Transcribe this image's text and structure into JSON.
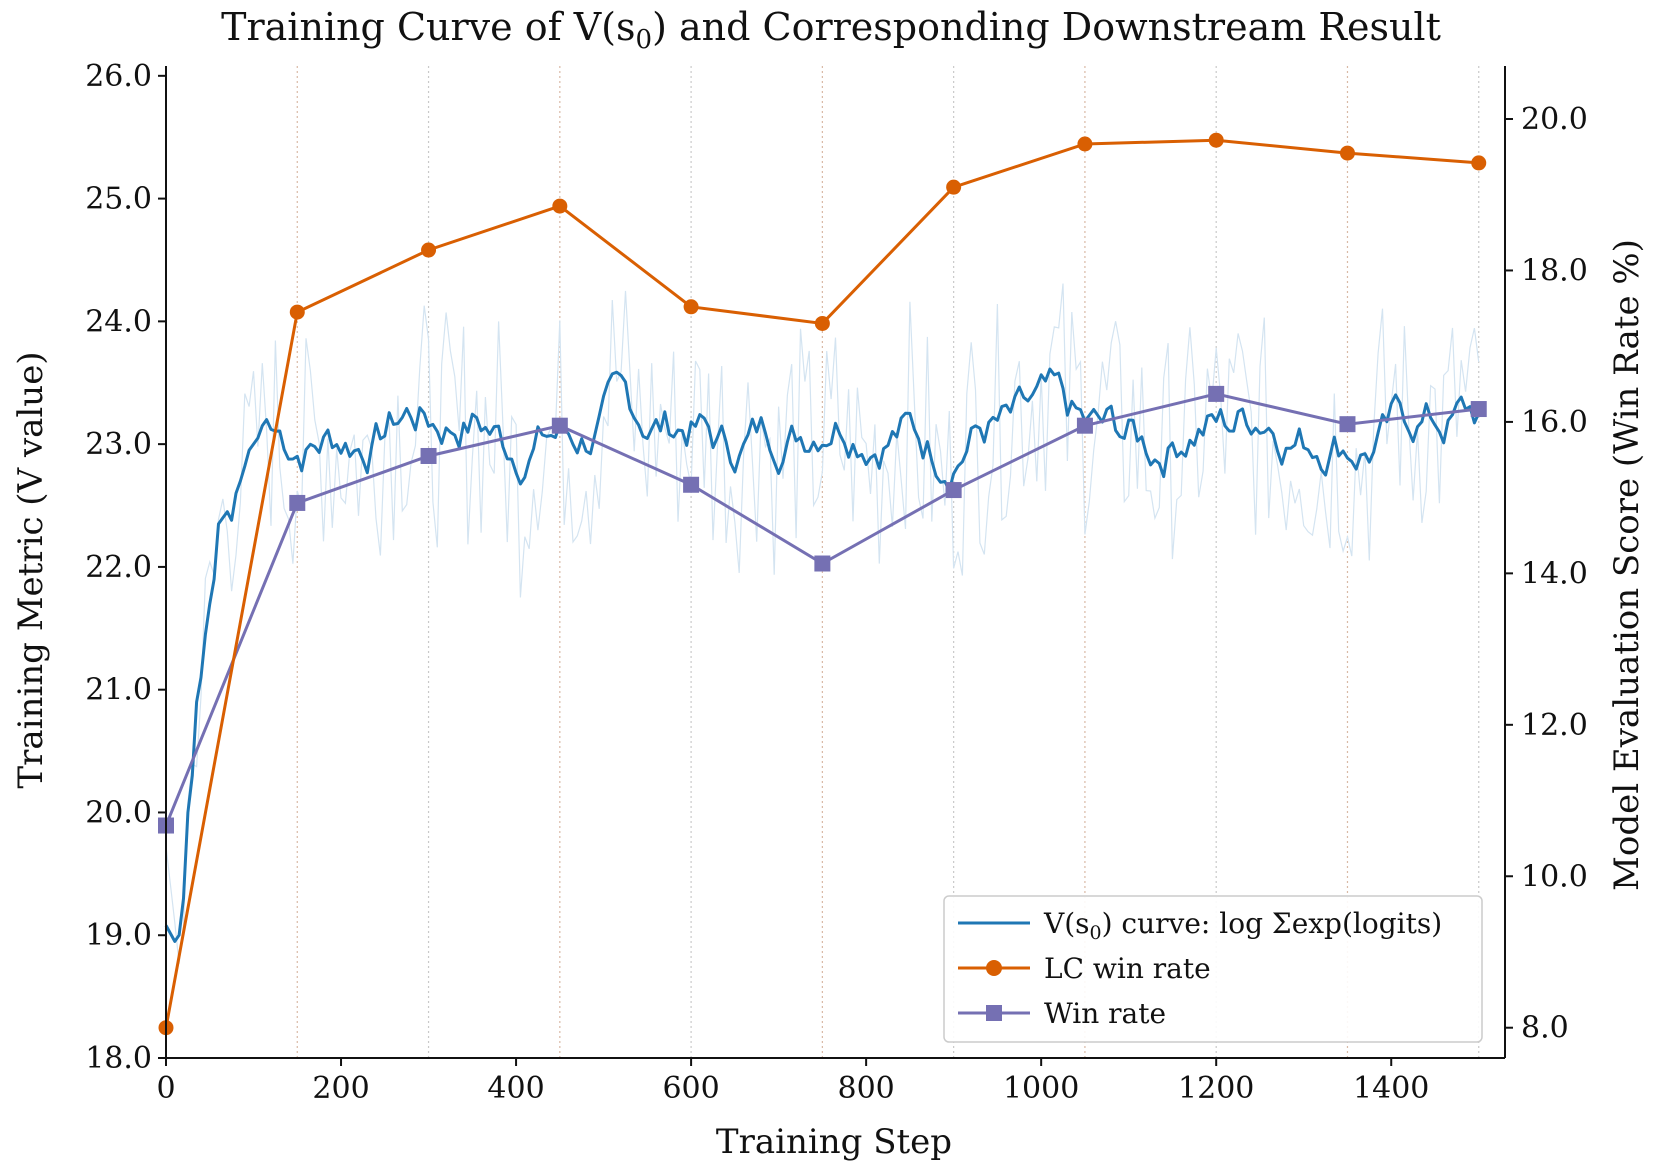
{
  "chart_data": {
    "type": "line",
    "title_prefix": "Training Curve of V(s",
    "title_sub": "0",
    "title_suffix": ") and Corresponding Downstream Result",
    "title": "Training Curve of V(s0) and Corresponding Downstream Result",
    "xlabel": "Training Step",
    "ylabel_left": "Training Metric (V value)",
    "ylabel_right": "Model Evaluation Score (Win Rate %)",
    "xlim": [
      0,
      1530
    ],
    "ylim_left": [
      18.0,
      26.08
    ],
    "ylim_right": [
      7.6,
      20.7
    ],
    "x_ticks": [
      0,
      200,
      400,
      600,
      800,
      1000,
      1200,
      1400
    ],
    "y_left_ticks": [
      18.0,
      19.0,
      20.0,
      21.0,
      22.0,
      23.0,
      24.0,
      25.0,
      26.0
    ],
    "y_right_ticks": [
      8.0,
      10.0,
      12.0,
      14.0,
      16.0,
      18.0,
      20.0
    ],
    "eval_steps": [
      0,
      150,
      300,
      450,
      600,
      750,
      900,
      1050,
      1200,
      1350,
      1500
    ],
    "series": [
      {
        "name": "V(s0) curve: log Σexp(logits)",
        "axis": "left",
        "color": "#1f77b4",
        "raw_color": "#d4e4f1",
        "start": [
          [
            0,
            19.08
          ],
          [
            10,
            18.95
          ],
          [
            15,
            19.0
          ],
          [
            20,
            19.3
          ],
          [
            25,
            20.0
          ],
          [
            30,
            20.3
          ],
          [
            35,
            20.9
          ],
          [
            40,
            21.1
          ],
          [
            45,
            21.45
          ],
          [
            50,
            21.7
          ],
          [
            55,
            21.9
          ],
          [
            60,
            22.35
          ],
          [
            65,
            22.4
          ],
          [
            70,
            22.45
          ],
          [
            75,
            22.38
          ],
          [
            80,
            22.6
          ],
          [
            85,
            22.7
          ],
          [
            90,
            22.82
          ],
          [
            95,
            22.95
          ],
          [
            100,
            23.0
          ],
          [
            105,
            23.05
          ],
          [
            110,
            23.15
          ],
          [
            115,
            23.2
          ],
          [
            120,
            23.12
          ]
        ],
        "band": [
          22.6,
          23.6
        ]
      },
      {
        "name": "LC win rate",
        "axis": "right",
        "color": "#d95f02",
        "marker": "circle",
        "x": [
          0,
          150,
          300,
          450,
          600,
          750,
          900,
          1050,
          1200,
          1350,
          1500
        ],
        "y": [
          8.0,
          17.45,
          18.27,
          18.85,
          17.52,
          17.3,
          19.1,
          19.67,
          19.72,
          19.55,
          19.42
        ]
      },
      {
        "name": "Win rate",
        "axis": "right",
        "color": "#7570b3",
        "marker": "square",
        "x": [
          0,
          150,
          300,
          450,
          600,
          750,
          900,
          1050,
          1200,
          1350,
          1500
        ],
        "y": [
          10.67,
          14.93,
          15.55,
          15.95,
          15.17,
          14.13,
          15.1,
          15.95,
          16.37,
          15.97,
          16.17
        ]
      }
    ],
    "legend": {
      "position": "lower-right",
      "entry_v_prefix": "V(s",
      "entry_v_sub": "0",
      "entry_v_suffix": ") curve: log Σexp(logits)",
      "entry_lc": "LC win rate",
      "entry_win": "Win rate"
    }
  }
}
